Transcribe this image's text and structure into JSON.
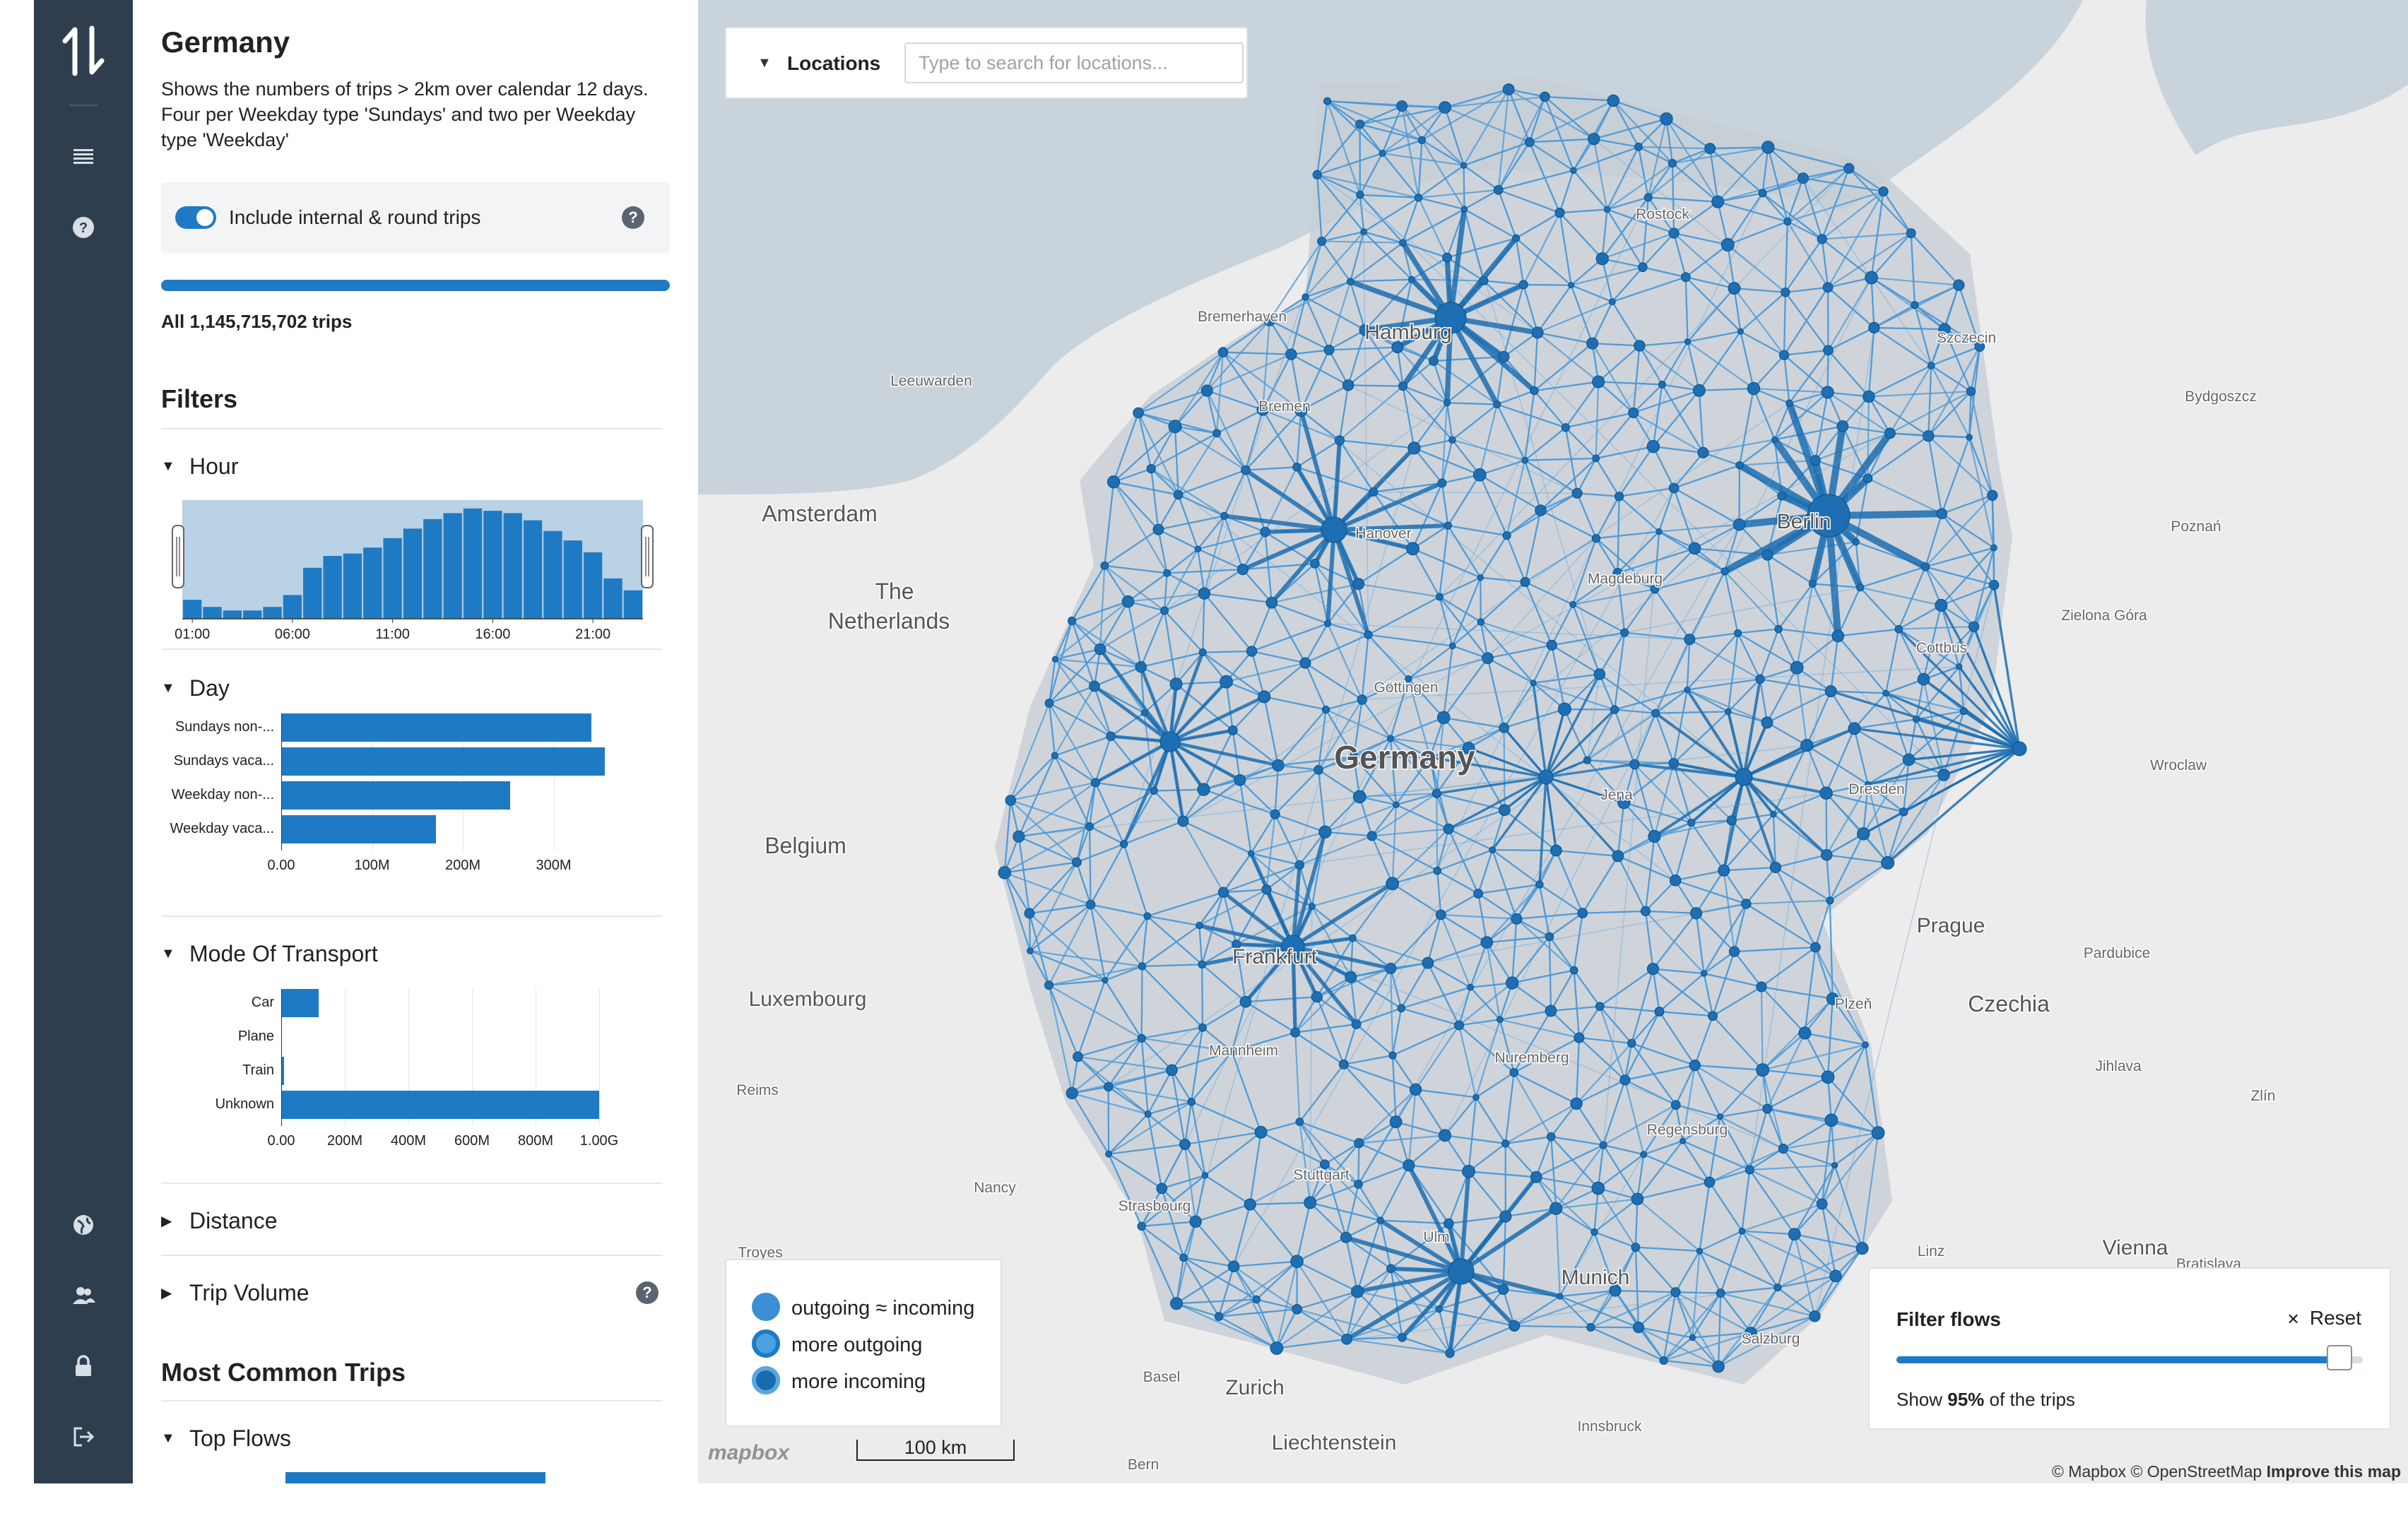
{
  "nav": {
    "icons": [
      "logo-icon",
      "menu-icon",
      "help-icon",
      "globe-icon",
      "users-icon",
      "lock-icon",
      "logout-icon"
    ]
  },
  "sidebar": {
    "title": "Germany",
    "description": "Shows the numbers of trips > 2km over calendar 12 days. Four per Weekday type 'Sundays' and two per Weekday type 'Weekday'",
    "toggle_label": "Include internal & round trips",
    "toggle_on": true,
    "total_text": "All 1,145,715,702 trips",
    "filters_heading": "Filters",
    "most_common_heading": "Most Common Trips",
    "filters": [
      {
        "label": "Hour",
        "expanded": true
      },
      {
        "label": "Day",
        "expanded": true
      },
      {
        "label": "Mode Of Transport",
        "expanded": true
      },
      {
        "label": "Distance",
        "expanded": false
      },
      {
        "label": "Trip Volume",
        "expanded": false
      }
    ],
    "top_flows_label": "Top Flows"
  },
  "chart_data": [
    {
      "type": "bar",
      "title": "Hour",
      "categories": [
        "01:00",
        "02:00",
        "03:00",
        "04:00",
        "05:00",
        "06:00",
        "07:00",
        "08:00",
        "09:00",
        "10:00",
        "11:00",
        "12:00",
        "13:00",
        "14:00",
        "15:00",
        "16:00",
        "17:00",
        "18:00",
        "19:00",
        "20:00",
        "21:00",
        "22:00",
        "23:00"
      ],
      "values": [
        0.16,
        0.1,
        0.07,
        0.07,
        0.1,
        0.2,
        0.43,
        0.53,
        0.55,
        0.6,
        0.68,
        0.76,
        0.84,
        0.89,
        0.93,
        0.91,
        0.89,
        0.83,
        0.74,
        0.66,
        0.56,
        0.34,
        0.24
      ],
      "tick_labels": [
        "01:00",
        "06:00",
        "11:00",
        "16:00",
        "21:00"
      ],
      "ylabel": "",
      "note_units": "relative"
    },
    {
      "type": "bar",
      "orientation": "horizontal",
      "title": "Day",
      "categories": [
        "Sundays non-...",
        "Sundays vaca...",
        "Weekday non-...",
        "Weekday vaca..."
      ],
      "values": [
        350000000,
        365000000,
        258000000,
        175000000
      ],
      "xlim": [
        0,
        370000000
      ],
      "tick_labels": [
        "0.00",
        "100M",
        "200M",
        "300M"
      ]
    },
    {
      "type": "bar",
      "orientation": "horizontal",
      "title": "Mode Of Transport",
      "categories": [
        "Car",
        "Plane",
        "Train",
        "Unknown"
      ],
      "values": [
        118000000,
        0,
        8000000,
        1000000000
      ],
      "xlim": [
        0,
        1000000000
      ],
      "tick_labels": [
        "0.00",
        "200M",
        "400M",
        "600M",
        "800M",
        "1.00G"
      ]
    }
  ],
  "map": {
    "locations_label": "Locations",
    "search_placeholder": "Type to search for locations...",
    "place_labels": [
      {
        "text": "Germany",
        "size": "xl"
      },
      {
        "text": "Hamburg",
        "size": "m"
      },
      {
        "text": "Bremerhaven",
        "size": "s"
      },
      {
        "text": "Rostock",
        "size": "s"
      },
      {
        "text": "Szczecin",
        "size": "s"
      },
      {
        "text": "Bydgoszcz",
        "size": "s"
      },
      {
        "text": "Leeuwarden",
        "size": "s"
      },
      {
        "text": "Amsterdam",
        "size": "l"
      },
      {
        "text": "The",
        "size": "l"
      },
      {
        "text": "Netherlands",
        "size": "l"
      },
      {
        "text": "Bremen",
        "size": "s"
      },
      {
        "text": "Hanover",
        "size": "s"
      },
      {
        "text": "Berlin",
        "size": "m"
      },
      {
        "text": "Poznań",
        "size": "s"
      },
      {
        "text": "Magdeburg",
        "size": "s"
      },
      {
        "text": "Zielona Góra",
        "size": "s"
      },
      {
        "text": "Göttingen",
        "size": "s"
      },
      {
        "text": "Cottbus",
        "size": "s"
      },
      {
        "text": "Wroclaw",
        "size": "s"
      },
      {
        "text": "Belgium",
        "size": "l"
      },
      {
        "text": "Dresden",
        "size": "s"
      },
      {
        "text": "Jena",
        "size": "s"
      },
      {
        "text": "Prague",
        "size": "m"
      },
      {
        "text": "Pardubice",
        "size": "s"
      },
      {
        "text": "Frankfurt",
        "size": "m"
      },
      {
        "text": "Luxembourg",
        "size": "m"
      },
      {
        "text": "Czechia",
        "size": "l"
      },
      {
        "text": "Plzeň",
        "size": "s"
      },
      {
        "text": "Reims",
        "size": "s"
      },
      {
        "text": "Mannheim",
        "size": "s"
      },
      {
        "text": "Nuremberg",
        "size": "s"
      },
      {
        "text": "Jihlava",
        "size": "s"
      },
      {
        "text": "Zlín",
        "size": "s"
      },
      {
        "text": "Regensburg",
        "size": "s"
      },
      {
        "text": "Nancy",
        "size": "s"
      },
      {
        "text": "Stuttgart",
        "size": "s"
      },
      {
        "text": "Strasbourg",
        "size": "s"
      },
      {
        "text": "Ulm",
        "size": "s"
      },
      {
        "text": "Troyes",
        "size": "s"
      },
      {
        "text": "Munich",
        "size": "m"
      },
      {
        "text": "Linz",
        "size": "s"
      },
      {
        "text": "Vienna",
        "size": "m"
      },
      {
        "text": "Bratislava",
        "size": "s"
      },
      {
        "text": "Basel",
        "size": "s"
      },
      {
        "text": "Zurich",
        "size": "m"
      },
      {
        "text": "Salzburg",
        "size": "s"
      },
      {
        "text": "Innsbruck",
        "size": "s"
      },
      {
        "text": "Liechtenstein",
        "size": "m"
      },
      {
        "text": "Bern",
        "size": "s"
      }
    ],
    "legend": [
      {
        "label": "outgoing ≈ incoming",
        "color": "#3b8fd3"
      },
      {
        "label": "more outgoing",
        "color": "#4aa0e0"
      },
      {
        "label": "more incoming",
        "color": "#1a6aae"
      }
    ],
    "scale_label": "100 km",
    "mapbox_logo": "mapbox",
    "filter_flows": {
      "title": "Filter flows",
      "reset_label": "Reset",
      "reset_icon": "✕",
      "show_prefix": "Show ",
      "show_value": "95%",
      "show_suffix": " of the trips",
      "slider_value": 0.95
    },
    "attribution": {
      "mapbox": "© Mapbox",
      "osm": "© OpenStreetMap",
      "improve": "Improve this map"
    }
  },
  "colors": {
    "accent": "#1f7ac4",
    "rail": "#2f3e4e",
    "flow": "#4a98d6",
    "node": "#1d6eb2"
  }
}
